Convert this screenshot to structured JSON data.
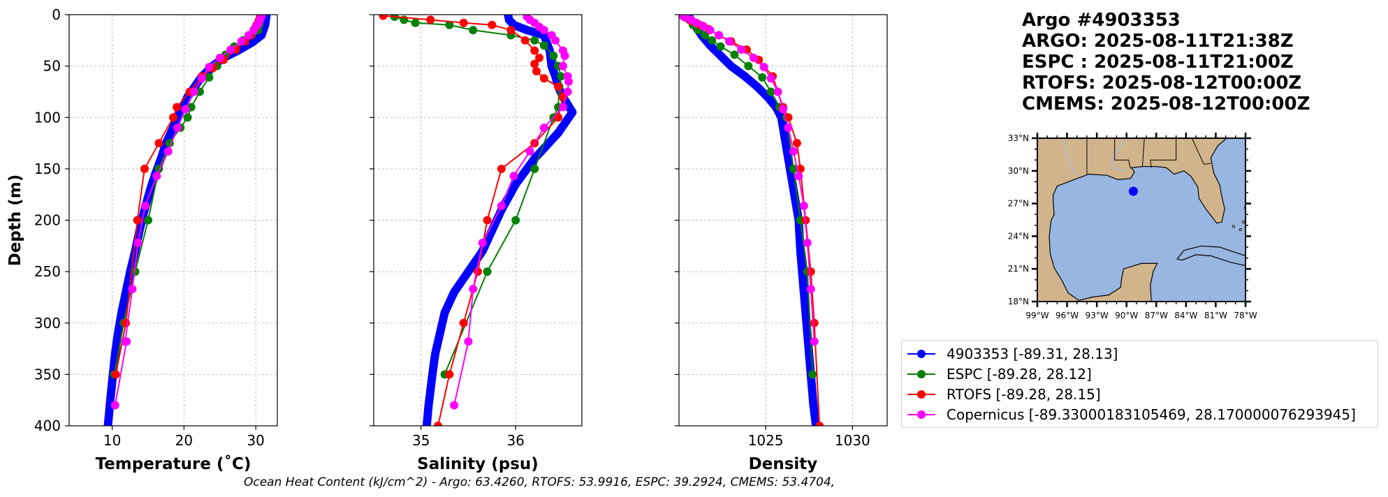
{
  "title_lines": [
    "Argo #4903353",
    "ARGO: 2025-08-11T21:38Z",
    "ESPC : 2025-08-11T21:00Z",
    "RTOFS: 2025-08-12T00:00Z",
    "CMEMS: 2025-08-12T00:00Z"
  ],
  "footer": "Ocean Heat Content (kJ/cm^2) - Argo: 63.4260,  RTOFS: 53.9916,  ESPC: 39.2924,  CMEMS: 53.4704,",
  "legend": [
    {
      "label": "4903353 [-89.31, 28.13]",
      "color": "#0000ff"
    },
    {
      "label": "ESPC [-89.28, 28.12]",
      "color": "#008000"
    },
    {
      "label": "RTOFS [-89.28, 28.15]",
      "color": "#ff0000"
    },
    {
      "label": "Copernicus [-89.33000183105469, 28.170000076293945]",
      "color": "#ff00ff"
    }
  ],
  "map": {
    "lat_ticks": [
      "33°N",
      "30°N",
      "27°N",
      "24°N",
      "21°N",
      "18°N"
    ],
    "lon_ticks": [
      "99°W",
      "96°W",
      "93°W",
      "90°W",
      "87°W",
      "84°W",
      "81°W",
      "78°W"
    ],
    "lat_range": [
      18,
      33
    ],
    "lon_range": [
      -99,
      -78
    ],
    "float_position": {
      "lon": -89.31,
      "lat": 28.13
    },
    "land_color": "#d2b48c",
    "ocean_color": "#97b6e1"
  },
  "chart_data": [
    {
      "type": "line",
      "xlabel": "Temperature (˚C)",
      "ylabel": "Depth (m)",
      "xlim": [
        4,
        33
      ],
      "ylim": [
        400,
        0
      ],
      "xticks": [
        10,
        20,
        30
      ],
      "yticks": [
        0,
        50,
        100,
        150,
        200,
        250,
        300,
        350,
        400
      ],
      "grid": true,
      "series": [
        {
          "name": "4903353",
          "color": "#0000ff",
          "dense": true,
          "x": [
            31.5,
            31.3,
            30.8,
            29.5,
            27.5,
            25.5,
            24.0,
            22.5,
            21.5,
            20.5,
            19.5,
            18.5,
            17.5,
            16.8,
            16.0,
            15.3,
            14.5,
            13.8,
            13.2,
            12.5,
            11.9,
            11.3,
            10.8,
            10.4,
            10.1,
            9.8,
            9.6,
            9.4
          ],
          "y": [
            0,
            10,
            20,
            27,
            35,
            42,
            50,
            60,
            70,
            80,
            95,
            110,
            125,
            140,
            155,
            170,
            190,
            210,
            230,
            250,
            270,
            290,
            310,
            330,
            350,
            370,
            385,
            400
          ]
        },
        {
          "name": "ESPC",
          "color": "#008000",
          "x": [
            30.6,
            30.5,
            30.3,
            29.4,
            28.2,
            27.0,
            25.8,
            24.6,
            23.5,
            22.2,
            21.0,
            20.5,
            19.5,
            18.0,
            16.5,
            15.0,
            13.2,
            11.6,
            10.3
          ],
          "y": [
            5,
            10,
            15,
            20,
            25,
            31,
            39,
            50,
            61,
            75,
            90,
            100,
            110,
            125,
            150,
            200,
            250,
            300,
            350
          ]
        },
        {
          "name": "RTOFS",
          "color": "#ff0000",
          "x": [
            30.6,
            30.4,
            30.1,
            29.8,
            29.3,
            28.5,
            27.2,
            25.5,
            24.0,
            22.5,
            20.8,
            19.0,
            18.5,
            16.5,
            14.5,
            13.5,
            11.9,
            10.5
          ],
          "y": [
            2,
            6,
            10,
            14,
            20,
            26,
            34,
            44,
            52,
            60,
            75,
            90,
            100,
            125,
            150,
            200,
            300,
            350
          ]
        },
        {
          "name": "Copernicus",
          "color": "#ff00ff",
          "x": [
            30.8,
            30.7,
            30.6,
            30.4,
            30.1,
            29.7,
            29.0,
            28.0,
            26.5,
            25.0,
            23.5,
            22.5,
            21.4,
            20.2,
            19.1,
            17.8,
            16.2,
            14.6,
            13.6,
            12.8,
            11.8,
            12.0,
            10.4
          ],
          "y": [
            1,
            3,
            5,
            8,
            11,
            15,
            20,
            26,
            34,
            42,
            51,
            62,
            75,
            92,
            110,
            133,
            157,
            186,
            222,
            267,
            318,
            318,
            380
          ]
        }
      ]
    },
    {
      "type": "line",
      "xlabel": "Salinity (psu)",
      "ylabel": "",
      "xlim": [
        34.5,
        36.7
      ],
      "ylim": [
        400,
        0
      ],
      "xticks": [
        35,
        36
      ],
      "yticks": [
        0,
        50,
        100,
        150,
        200,
        250,
        300,
        350,
        400
      ],
      "grid": true,
      "series": [
        {
          "name": "4903353",
          "color": "#0000ff",
          "dense": true,
          "x": [
            35.92,
            35.93,
            35.98,
            36.12,
            36.3,
            36.36,
            36.38,
            36.42,
            36.45,
            36.5,
            36.6,
            36.45,
            36.2,
            36.0,
            35.85,
            35.75,
            35.65,
            35.5,
            35.35,
            35.25,
            35.2,
            35.15,
            35.12,
            35.1,
            35.08,
            35.07,
            35.06
          ],
          "y": [
            0,
            5,
            10,
            15,
            20,
            35,
            50,
            60,
            70,
            80,
            95,
            115,
            140,
            165,
            190,
            210,
            230,
            250,
            270,
            290,
            310,
            330,
            350,
            365,
            380,
            390,
            400
          ]
        },
        {
          "name": "ESPC",
          "color": "#008000",
          "x": [
            34.72,
            34.82,
            34.94,
            35.3,
            35.55,
            35.95,
            36.2,
            36.3,
            36.4,
            36.45,
            36.48,
            36.46,
            36.45,
            36.4,
            36.2,
            36.0,
            35.7,
            35.25
          ],
          "y": [
            2,
            5,
            8,
            10,
            15,
            20,
            25,
            30,
            40,
            50,
            60,
            70,
            90,
            100,
            150,
            200,
            250,
            350
          ]
        },
        {
          "name": "RTOFS",
          "color": "#ff0000",
          "x": [
            34.6,
            35.1,
            35.45,
            35.75,
            35.95,
            36.1,
            36.2,
            36.25,
            36.2,
            36.22,
            36.3,
            36.45,
            36.5,
            36.45,
            36.2,
            35.85,
            35.7,
            35.6,
            35.45,
            35.3,
            35.18
          ],
          "y": [
            1,
            5,
            8,
            10,
            15,
            25,
            35,
            42,
            48,
            55,
            62,
            70,
            80,
            100,
            125,
            150,
            200,
            250,
            300,
            350,
            400
          ]
        },
        {
          "name": "Copernicus",
          "color": "#ff00ff",
          "x": [
            36.12,
            36.15,
            36.2,
            36.25,
            36.3,
            36.38,
            36.42,
            36.5,
            36.52,
            36.5,
            36.55,
            36.56,
            36.55,
            36.5,
            36.3,
            36.15,
            35.98,
            35.85,
            35.65,
            35.55,
            35.5,
            35.35
          ],
          "y": [
            2,
            5,
            8,
            12,
            15,
            20,
            25,
            35,
            40,
            50,
            60,
            65,
            75,
            90,
            110,
            133,
            157,
            186,
            222,
            267,
            318,
            380
          ]
        }
      ]
    },
    {
      "type": "line",
      "xlabel": "Density",
      "ylabel": "",
      "xlim": [
        1020,
        1032
      ],
      "ylim": [
        400,
        0
      ],
      "xticks": [
        1025,
        1030
      ],
      "yticks": [
        0,
        50,
        100,
        150,
        200,
        250,
        300,
        350,
        400
      ],
      "grid": true,
      "series": [
        {
          "name": "4903353",
          "color": "#0000ff",
          "dense": true,
          "x": [
            1020.5,
            1020.9,
            1021.3,
            1021.8,
            1022.4,
            1023.0,
            1023.8,
            1024.5,
            1025.1,
            1025.6,
            1025.9,
            1026.1,
            1026.3,
            1026.5,
            1026.7,
            1026.9,
            1027.0,
            1027.15,
            1027.3,
            1027.45,
            1027.6,
            1027.75,
            1027.9
          ],
          "y": [
            0,
            10,
            20,
            30,
            40,
            50,
            60,
            70,
            80,
            90,
            100,
            120,
            140,
            160,
            180,
            200,
            230,
            260,
            290,
            320,
            350,
            380,
            400
          ]
        },
        {
          "name": "ESPC",
          "color": "#008000",
          "x": [
            1020.6,
            1020.8,
            1021.1,
            1021.5,
            1021.9,
            1022.4,
            1023.2,
            1024.0,
            1024.8,
            1025.3,
            1025.8,
            1026.2,
            1026.6,
            1027.0,
            1027.4,
            1027.7
          ],
          "y": [
            5,
            10,
            15,
            20,
            25,
            31,
            39,
            50,
            61,
            75,
            90,
            100,
            150,
            200,
            250,
            350
          ]
        },
        {
          "name": "RTOFS",
          "color": "#ff0000",
          "x": [
            1020.3,
            1020.7,
            1021.2,
            1021.7,
            1022.3,
            1023.0,
            1023.9,
            1024.6,
            1025.4,
            1025.7,
            1026.0,
            1026.3,
            1026.8,
            1027.0,
            1027.3,
            1027.6,
            1027.8,
            1028.1
          ],
          "y": [
            2,
            6,
            10,
            14,
            20,
            26,
            34,
            44,
            60,
            75,
            90,
            100,
            125,
            150,
            200,
            250,
            300,
            400
          ]
        },
        {
          "name": "Copernicus",
          "color": "#ff00ff",
          "x": [
            1020.2,
            1020.4,
            1020.7,
            1021.0,
            1021.4,
            1021.8,
            1022.3,
            1022.9,
            1023.6,
            1024.3,
            1024.9,
            1025.3,
            1025.7,
            1026.0,
            1026.3,
            1026.6,
            1026.9,
            1027.2,
            1027.4,
            1027.6,
            1027.8
          ],
          "y": [
            1,
            3,
            5,
            8,
            11,
            15,
            20,
            26,
            34,
            42,
            51,
            62,
            75,
            92,
            110,
            133,
            157,
            186,
            222,
            267,
            318
          ]
        }
      ]
    }
  ]
}
